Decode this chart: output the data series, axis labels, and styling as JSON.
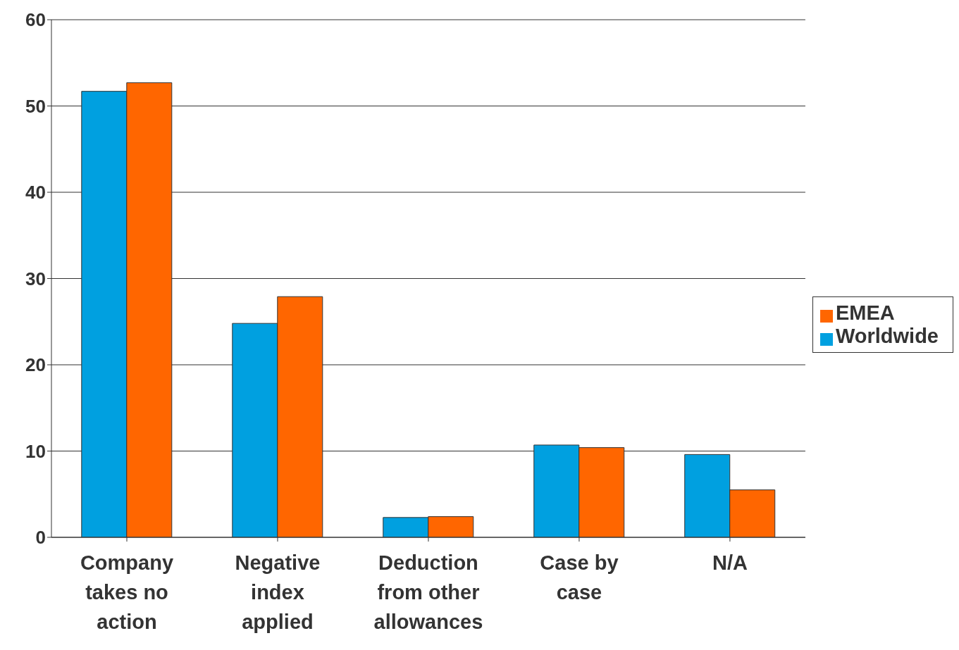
{
  "chart_data": {
    "type": "bar",
    "categories": [
      "Company takes no action",
      "Negative index applied",
      "Deduction from other allowances",
      "Case by case",
      "N/A"
    ],
    "series": [
      {
        "name": "Worldwide",
        "color": "#00a0e0",
        "values": [
          51.7,
          24.8,
          2.3,
          10.7,
          9.6
        ]
      },
      {
        "name": "EMEA",
        "color": "#ff6600",
        "values": [
          52.7,
          27.9,
          2.4,
          10.4,
          5.5
        ]
      }
    ],
    "ylim": [
      0,
      60
    ],
    "yticks": [
      0,
      10,
      20,
      30,
      40,
      50,
      60
    ],
    "grid": "y",
    "legend": "right"
  }
}
